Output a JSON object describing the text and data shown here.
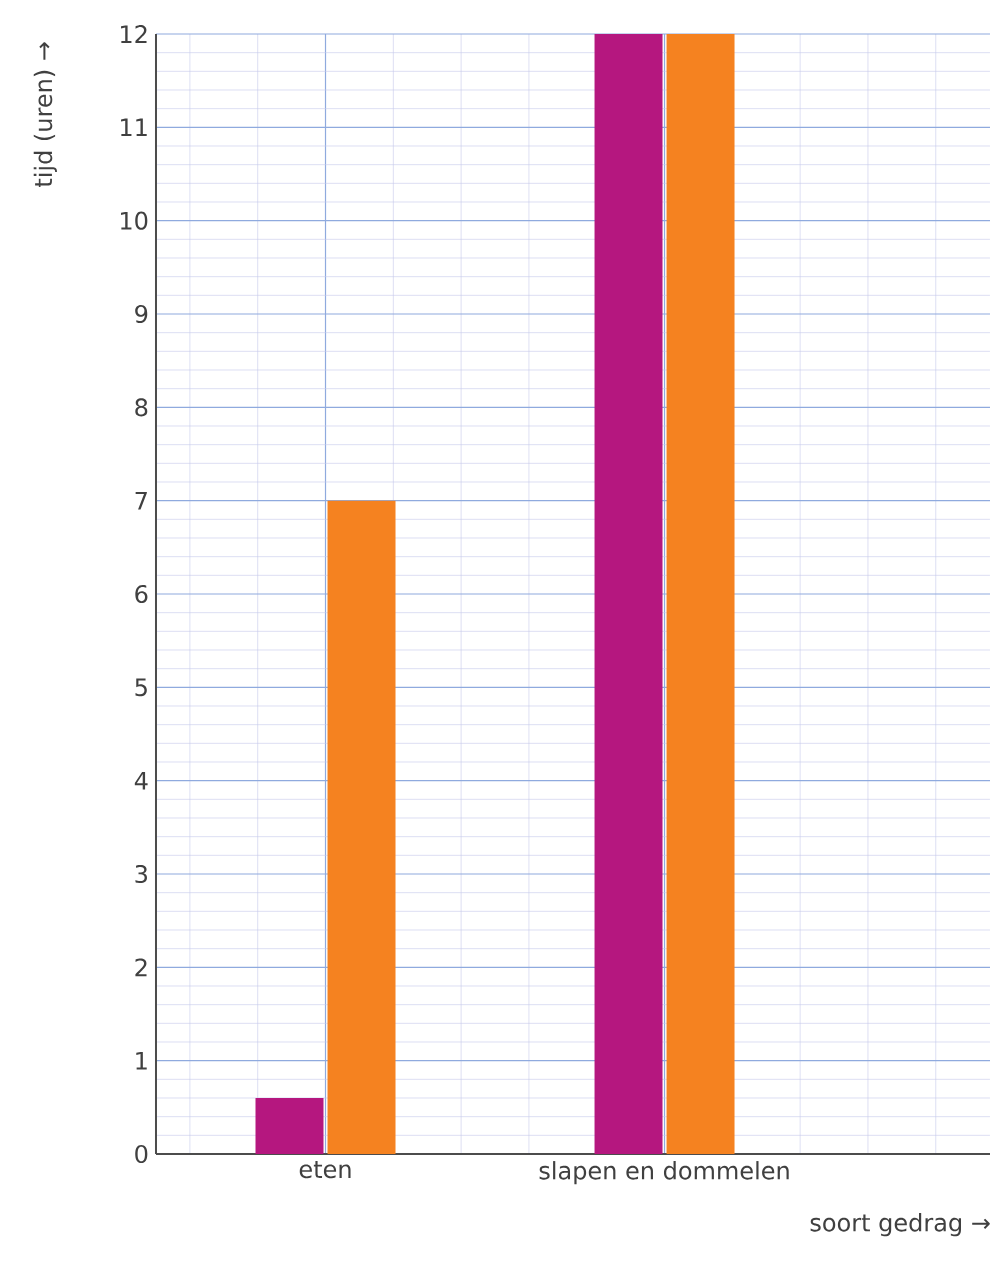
{
  "chart_data": {
    "type": "bar",
    "xlabel": "soort gedrag →",
    "ylabel": "tijd (uren) →",
    "categories": [
      "eten",
      "slapen en dommelen"
    ],
    "series": [
      {
        "color": "#b5177f",
        "values": [
          0.6,
          12
        ]
      },
      {
        "color": "#f58220",
        "values": [
          7,
          12
        ]
      }
    ],
    "ylim": [
      0,
      12
    ],
    "yticks": [
      0,
      1,
      2,
      3,
      4,
      5,
      6,
      7,
      8,
      9,
      10,
      11,
      12
    ],
    "grid": true
  }
}
